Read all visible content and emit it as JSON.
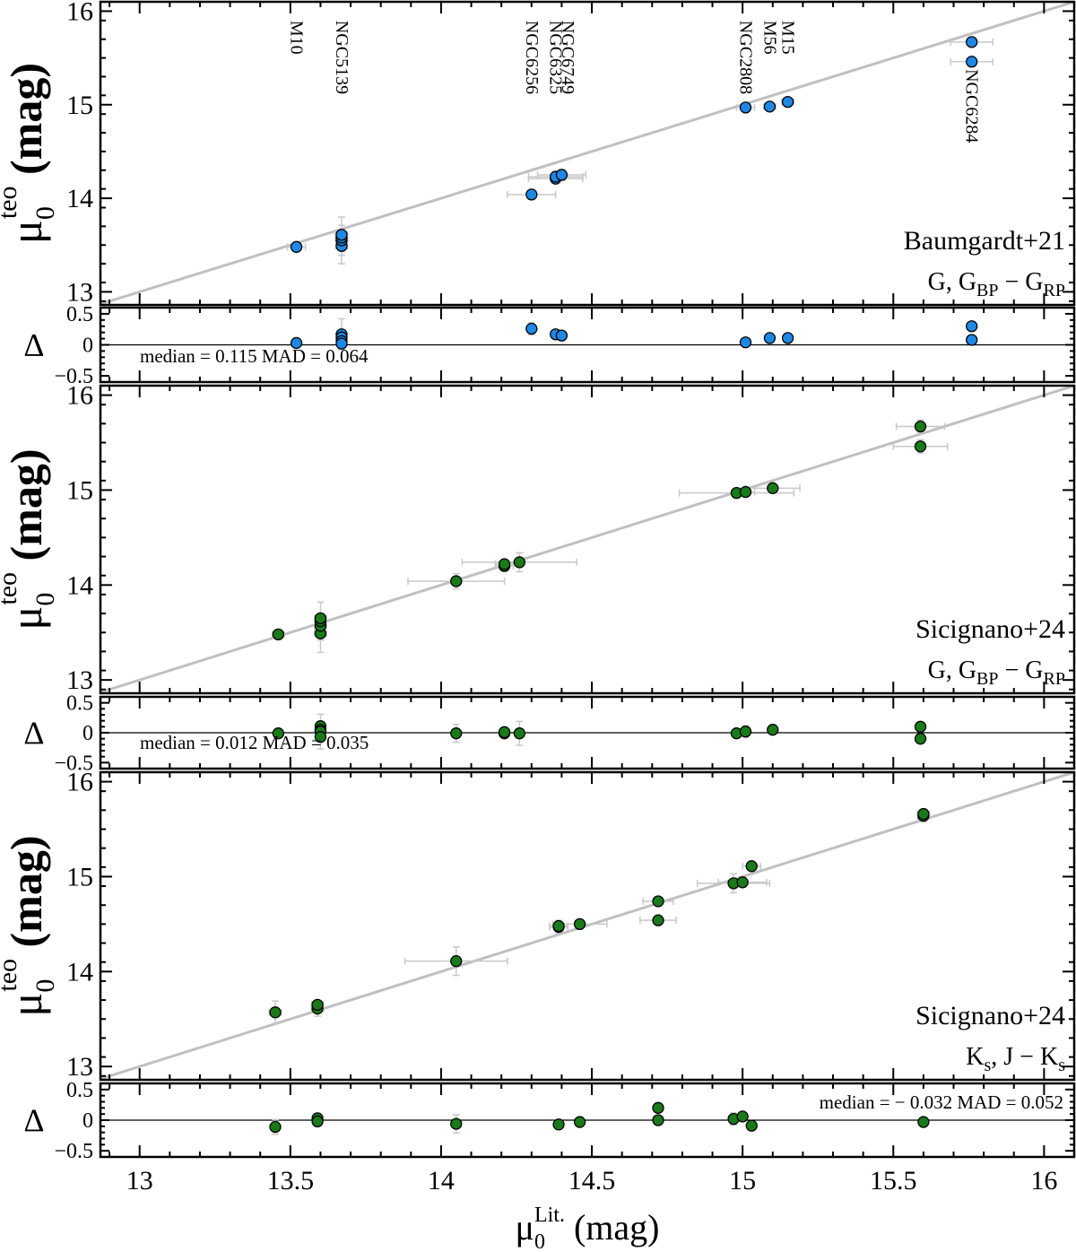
{
  "chart_data": {
    "type": "scatter",
    "figure": {
      "xlabel_main": "μ",
      "xlabel_sub": "0",
      "xlabel_sup": "Lit.",
      "xlabel_unit": "(mag)",
      "xlim": [
        12.87,
        16.1
      ],
      "xticks": [
        "13",
        "13.5",
        "14",
        "14.5",
        "15",
        "15.5",
        "16"
      ],
      "xtick_values": [
        13,
        13.5,
        14,
        14.5,
        15,
        15.5,
        16
      ],
      "ylabel_main": "μ",
      "ylabel_sub": "0",
      "ylabel_sup": "teo",
      "ylabel_unit": "(mag)",
      "delta_label": "Δ",
      "one_to_one_line": true,
      "line_color": "#c0c0c0",
      "errorbar_color": "#c8c8c8",
      "stat_color": "#ff0000"
    },
    "panels": [
      {
        "id": "baumgardt",
        "marker_color": "#1e88e5",
        "ylim": [
          12.86,
          16.1
        ],
        "yticks": [
          "13",
          "14",
          "15",
          "16"
        ],
        "ytick_values": [
          13,
          14,
          15,
          16
        ],
        "legend": "Baumgardt+21",
        "legend_color": "#1e88e5",
        "band_main": "G, G",
        "band_sub1": "BP",
        "band_minus": " − G",
        "band_sub2": "RP",
        "points": [
          {
            "x": 13.52,
            "y": 13.48,
            "xerr": 0.03,
            "yerr": 0.02
          },
          {
            "x": 13.67,
            "y": 13.49,
            "xerr": 0.02,
            "yerr": 0.1
          },
          {
            "x": 13.67,
            "y": 13.55,
            "xerr": 0.02,
            "yerr": 0.25
          },
          {
            "x": 13.67,
            "y": 13.58,
            "xerr": 0.02,
            "yerr": 0.05
          },
          {
            "x": 13.67,
            "y": 13.61,
            "xerr": 0.02,
            "yerr": 0.1
          },
          {
            "x": 14.3,
            "y": 14.04,
            "xerr": 0.08,
            "yerr": 0.05
          },
          {
            "x": 14.38,
            "y": 14.21,
            "xerr": 0.09,
            "yerr": 0.05
          },
          {
            "x": 14.38,
            "y": 14.23,
            "xerr": 0.09,
            "yerr": 0.05
          },
          {
            "x": 14.4,
            "y": 14.25,
            "xerr": 0.08,
            "yerr": 0.06
          },
          {
            "x": 15.01,
            "y": 14.97,
            "xerr": 0.03,
            "yerr": 0.03
          },
          {
            "x": 15.09,
            "y": 14.98,
            "xerr": 0.02,
            "yerr": 0.02
          },
          {
            "x": 15.15,
            "y": 15.03,
            "xerr": 0.02,
            "yerr": 0.02
          },
          {
            "x": 15.76,
            "y": 15.67,
            "xerr": 0.07,
            "yerr": 0.04
          },
          {
            "x": 15.76,
            "y": 15.46,
            "xerr": 0.07,
            "yerr": 0.04
          }
        ],
        "cluster_labels": [
          {
            "name": "M10",
            "x": 13.52,
            "y": 15.9
          },
          {
            "name": "NGC5139",
            "x": 13.67,
            "y": 15.9
          },
          {
            "name": "NGC6256",
            "x": 14.3,
            "y": 15.9
          },
          {
            "name": "NGC6325",
            "x": 14.38,
            "y": 15.9
          },
          {
            "name": "NGC6749",
            "x": 14.42,
            "y": 15.9
          },
          {
            "name": "NGC2808",
            "x": 15.01,
            "y": 15.9
          },
          {
            "name": "M56",
            "x": 15.09,
            "y": 15.9
          },
          {
            "name": "M15",
            "x": 15.15,
            "y": 15.9
          },
          {
            "name": "NGC6284",
            "x": 15.76,
            "y": 15.38
          }
        ],
        "residuals": {
          "ylim": [
            -0.6,
            0.6
          ],
          "yticks": [
            "0.5",
            "0",
            "−0.5"
          ],
          "ytick_values": [
            0.5,
            0,
            -0.5
          ],
          "stat_text": "median = 0.115 MAD = 0.064",
          "stat_pos": "bottom-left",
          "points": [
            {
              "x": 13.52,
              "y": 0.03,
              "yerr": 0.02
            },
            {
              "x": 13.67,
              "y": 0.17,
              "yerr": 0.25
            },
            {
              "x": 13.67,
              "y": 0.12,
              "yerr": 0.1
            },
            {
              "x": 13.67,
              "y": 0.06,
              "yerr": 0.05
            },
            {
              "x": 13.67,
              "y": 0.02,
              "yerr": 0.05
            },
            {
              "x": 14.3,
              "y": 0.26,
              "yerr": 0.1
            },
            {
              "x": 14.38,
              "y": 0.17,
              "yerr": 0.05
            },
            {
              "x": 14.4,
              "y": 0.15,
              "yerr": 0.05
            },
            {
              "x": 15.01,
              "y": 0.04,
              "yerr": 0.02
            },
            {
              "x": 15.09,
              "y": 0.11,
              "yerr": 0.02
            },
            {
              "x": 15.15,
              "y": 0.11,
              "yerr": 0.02
            },
            {
              "x": 15.76,
              "y": 0.3,
              "yerr": 0.04
            },
            {
              "x": 15.76,
              "y": 0.08,
              "yerr": 0.04
            }
          ]
        }
      },
      {
        "id": "sicignano_gaia",
        "marker_color": "#1a7a1a",
        "ylim": [
          12.86,
          16.1
        ],
        "yticks": [
          "13",
          "14",
          "15",
          "16"
        ],
        "ytick_values": [
          13,
          14,
          15,
          16
        ],
        "legend": "Sicignano+24",
        "legend_color": "#1a7a1a",
        "band_main": "G, G",
        "band_sub1": "BP",
        "band_minus": " − G",
        "band_sub2": "RP",
        "points": [
          {
            "x": 13.46,
            "y": 13.48,
            "xerr": 0.02,
            "yerr": 0.04
          },
          {
            "x": 13.6,
            "y": 13.49,
            "xerr": 0.02,
            "yerr": 0.2
          },
          {
            "x": 13.6,
            "y": 13.57,
            "xerr": 0.02,
            "yerr": 0.1
          },
          {
            "x": 13.6,
            "y": 13.62,
            "xerr": 0.02,
            "yerr": 0.2
          },
          {
            "x": 13.6,
            "y": 13.65,
            "xerr": 0.02,
            "yerr": 0.05
          },
          {
            "x": 14.05,
            "y": 14.04,
            "xerr": 0.16,
            "yerr": 0.08
          },
          {
            "x": 14.21,
            "y": 14.2,
            "xerr": 0.03,
            "yerr": 0.05
          },
          {
            "x": 14.21,
            "y": 14.22,
            "xerr": 0.03,
            "yerr": 0.05
          },
          {
            "x": 14.26,
            "y": 14.24,
            "xerr": 0.19,
            "yerr": 0.1
          },
          {
            "x": 14.98,
            "y": 14.97,
            "xerr": 0.19,
            "yerr": 0.05
          },
          {
            "x": 15.01,
            "y": 14.98,
            "xerr": 0.03,
            "yerr": 0.03
          },
          {
            "x": 15.1,
            "y": 15.02,
            "xerr": 0.09,
            "yerr": 0.03
          },
          {
            "x": 15.59,
            "y": 15.67,
            "xerr": 0.08,
            "yerr": 0.07
          },
          {
            "x": 15.59,
            "y": 15.46,
            "xerr": 0.09,
            "yerr": 0.07
          }
        ],
        "residuals": {
          "ylim": [
            -0.6,
            0.6
          ],
          "yticks": [
            "0.5",
            "0",
            "−0.5"
          ],
          "ytick_values": [
            0.5,
            0,
            -0.5
          ],
          "stat_text": "median = 0.012 MAD = 0.035",
          "stat_pos": "bottom-left",
          "points": [
            {
              "x": 13.46,
              "y": -0.01,
              "yerr": 0.04
            },
            {
              "x": 13.6,
              "y": 0.11,
              "yerr": 0.2
            },
            {
              "x": 13.6,
              "y": 0.05,
              "yerr": 0.1
            },
            {
              "x": 13.6,
              "y": 0.02,
              "yerr": 0.1
            },
            {
              "x": 13.6,
              "y": -0.07,
              "yerr": 0.2
            },
            {
              "x": 14.05,
              "y": -0.01,
              "yerr": 0.15
            },
            {
              "x": 14.21,
              "y": -0.01,
              "yerr": 0.05
            },
            {
              "x": 14.21,
              "y": 0.01,
              "yerr": 0.05
            },
            {
              "x": 14.26,
              "y": -0.01,
              "yerr": 0.2
            },
            {
              "x": 14.98,
              "y": -0.01,
              "yerr": 0.05
            },
            {
              "x": 15.01,
              "y": 0.02,
              "yerr": 0.1
            },
            {
              "x": 15.1,
              "y": 0.05,
              "yerr": 0.03
            },
            {
              "x": 15.59,
              "y": 0.1,
              "yerr": 0.07
            },
            {
              "x": 15.59,
              "y": -0.1,
              "yerr": 0.07
            }
          ]
        }
      },
      {
        "id": "sicignano_2mass",
        "marker_color": "#1a7a1a",
        "ylim": [
          12.86,
          16.1
        ],
        "yticks": [
          "13",
          "14",
          "15",
          "16"
        ],
        "ytick_values": [
          13,
          14,
          15,
          16
        ],
        "legend": "Sicignano+24",
        "legend_color": "#1a7a1a",
        "band_main": "K",
        "band_sub1": "s",
        "band_minus": ", J − K",
        "band_sub2": "s",
        "points": [
          {
            "x": 13.45,
            "y": 13.57,
            "xerr": 0.02,
            "yerr": 0.12
          },
          {
            "x": 13.59,
            "y": 13.61,
            "xerr": 0.02,
            "yerr": 0.08
          },
          {
            "x": 13.59,
            "y": 13.65,
            "xerr": 0.02,
            "yerr": 0.04
          },
          {
            "x": 14.05,
            "y": 14.11,
            "xerr": 0.17,
            "yerr": 0.15
          },
          {
            "x": 14.39,
            "y": 14.47,
            "xerr": 0.03,
            "yerr": 0.07
          },
          {
            "x": 14.39,
            "y": 14.48,
            "xerr": 0.03,
            "yerr": 0.03
          },
          {
            "x": 14.46,
            "y": 14.5,
            "xerr": 0.09,
            "yerr": 0.04
          },
          {
            "x": 14.72,
            "y": 14.74,
            "xerr": 0.05,
            "yerr": 0.04
          },
          {
            "x": 14.72,
            "y": 14.54,
            "xerr": 0.06,
            "yerr": 0.04
          },
          {
            "x": 14.97,
            "y": 14.93,
            "xerr": 0.12,
            "yerr": 0.1
          },
          {
            "x": 15.0,
            "y": 14.94,
            "xerr": 0.08,
            "yerr": 0.04
          },
          {
            "x": 15.03,
            "y": 15.11,
            "xerr": 0.03,
            "yerr": 0.04
          },
          {
            "x": 15.6,
            "y": 15.64,
            "xerr": 0.02,
            "yerr": 0.06
          },
          {
            "x": 15.6,
            "y": 15.66,
            "xerr": 0.02,
            "yerr": 0.04
          }
        ],
        "residuals": {
          "ylim": [
            -0.6,
            0.6
          ],
          "yticks": [
            "0.5",
            "0",
            "−0.5"
          ],
          "ytick_values": [
            0.5,
            0,
            -0.5
          ],
          "stat_text": "median = − 0.032 MAD = 0.052",
          "stat_pos": "top-right",
          "points": [
            {
              "x": 13.45,
              "y": -0.11,
              "yerr": 0.12
            },
            {
              "x": 13.59,
              "y": 0.03,
              "yerr": 0.08
            },
            {
              "x": 13.59,
              "y": -0.02,
              "yerr": 0.04
            },
            {
              "x": 14.05,
              "y": -0.06,
              "yerr": 0.15
            },
            {
              "x": 14.39,
              "y": -0.07,
              "yerr": 0.07
            },
            {
              "x": 14.46,
              "y": -0.03,
              "yerr": 0.04
            },
            {
              "x": 14.72,
              "y": 0.2,
              "yerr": 0.04
            },
            {
              "x": 14.72,
              "y": 0.0,
              "yerr": 0.04
            },
            {
              "x": 14.97,
              "y": 0.02,
              "yerr": 0.1
            },
            {
              "x": 15.0,
              "y": 0.06,
              "yerr": 0.04
            },
            {
              "x": 15.03,
              "y": -0.09,
              "yerr": 0.04
            },
            {
              "x": 15.6,
              "y": -0.03,
              "yerr": 0.06
            }
          ]
        }
      }
    ]
  }
}
